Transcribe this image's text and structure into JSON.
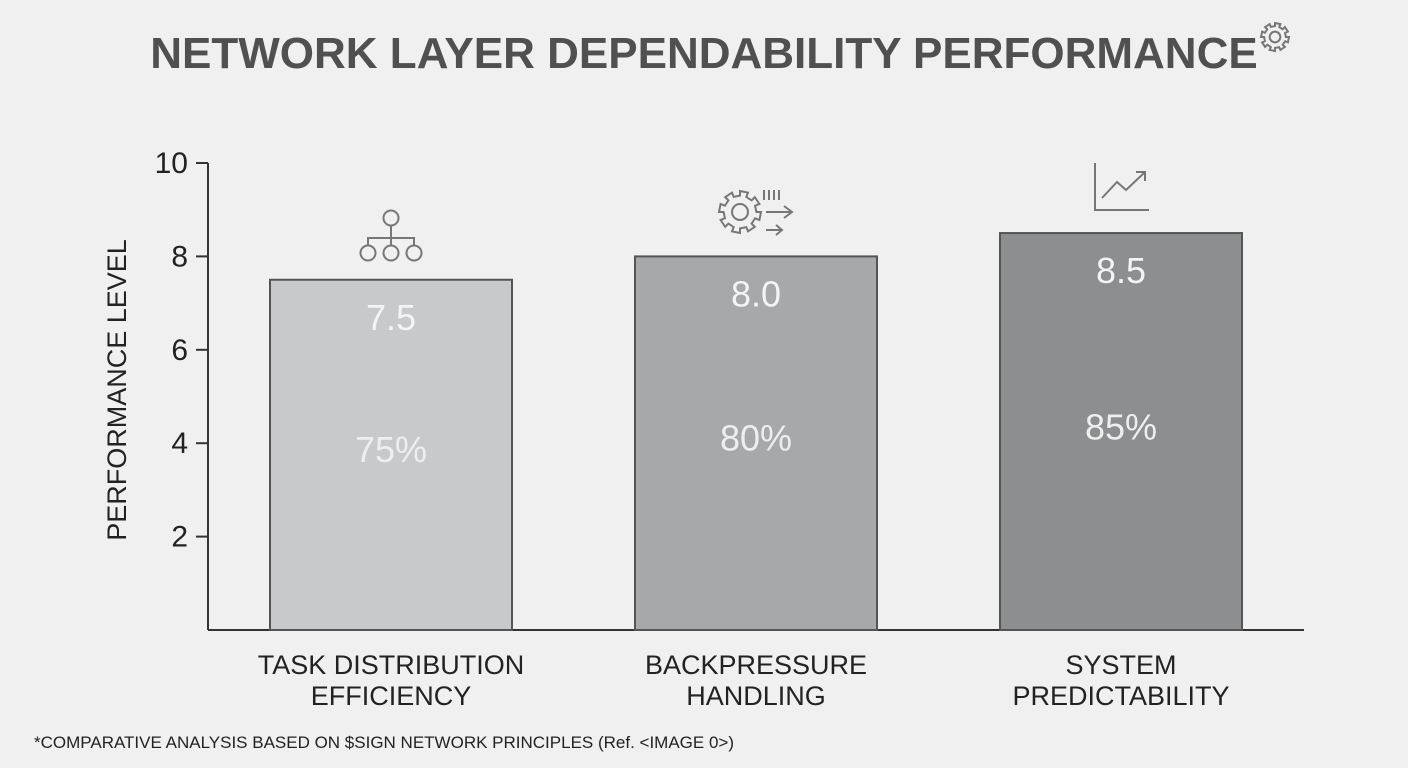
{
  "chart_data": {
    "type": "bar",
    "title": "NETWORK LAYER DEPENDABILITY PERFORMANCE",
    "ylabel": "PERFORMANCE LEVEL",
    "xlabel": "",
    "ylim": [
      0,
      10
    ],
    "yticks": [
      2,
      4,
      6,
      8,
      10
    ],
    "grid": false,
    "categories": [
      [
        "TASK DISTRIBUTION",
        "EFFICIENCY"
      ],
      [
        "BACKPRESSURE",
        "HANDLING"
      ],
      [
        "SYSTEM",
        "PREDICTABILITY"
      ]
    ],
    "values": [
      7.5,
      8.0,
      8.5
    ],
    "value_labels": [
      "7.5",
      "8.0",
      "8.5"
    ],
    "percent_labels": [
      "75%",
      "80%",
      "85%"
    ],
    "bar_colors": [
      "#c8c9cb",
      "#a6a8aa",
      "#8c8e90"
    ],
    "bar_icons": [
      "hierarchy-icon",
      "gear-flow-icon",
      "trend-chart-icon"
    ],
    "title_icon": "gear-icon"
  },
  "footnote": "*COMPARATIVE ANALYSIS BASED ON $SIGN NETWORK PRINCIPLES (Ref. <IMAGE 0>)"
}
